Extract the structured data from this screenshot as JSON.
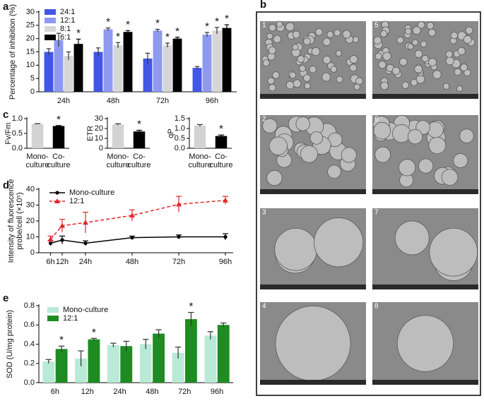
{
  "chart_data": [
    {
      "type": "bar",
      "panel_label": "a",
      "y_label": "Percentage of inhibition (%)",
      "categories": [
        "24h",
        "48h",
        "72h",
        "96h"
      ],
      "series": [
        {
          "name": "24:1",
          "color": "#4257e6",
          "values": [
            15,
            15,
            12.5,
            9
          ],
          "errors": [
            1.2,
            1.5,
            2,
            0.5
          ]
        },
        {
          "name": "12:1",
          "color": "#8e99f2",
          "values": [
            19.5,
            23.5,
            23,
            21.5
          ],
          "errors": [
            2.5,
            0.5,
            0.5,
            0.8
          ],
          "significance": [
            null,
            "*",
            "*",
            "*"
          ]
        },
        {
          "name": "8:1",
          "color": "#d6d6d6",
          "values": [
            13.5,
            17.5,
            17.5,
            23
          ],
          "errors": [
            1.5,
            1,
            0.8,
            1.2
          ],
          "significance": [
            null,
            "*",
            "*",
            "*"
          ]
        },
        {
          "name": "6:1",
          "color": "#000000",
          "values": [
            18,
            22.5,
            20,
            24
          ],
          "errors": [
            1.8,
            0.5,
            0.5,
            1.2
          ],
          "significance": [
            "*",
            "*",
            "*",
            "*"
          ]
        }
      ],
      "ylim": [
        0,
        30
      ],
      "yticks": [
        0,
        5,
        10,
        15,
        20,
        25,
        30
      ],
      "legend": "top-left"
    },
    {
      "type": "bar",
      "panel_label": "c",
      "y_label": "Fv/Fm",
      "categories": [
        [
          "Mono-",
          "culture"
        ],
        [
          "Co-",
          "culture"
        ]
      ],
      "values": [
        0.82,
        0.75
      ],
      "errors": [
        0.01,
        0.015
      ],
      "colors": [
        "#d3d3d3",
        "#000000"
      ],
      "significance": [
        null,
        "*"
      ],
      "ylim": [
        0,
        1
      ],
      "yticks": [
        {
          "value": 0,
          "label": "0.0"
        },
        0.5,
        {
          "value": 1,
          "label": "1.0"
        }
      ]
    },
    {
      "type": "bar",
      "y_label": "ETR",
      "categories": [
        [
          "Mono-",
          "culture"
        ],
        [
          "Co-",
          "culture"
        ]
      ],
      "values": [
        24,
        17
      ],
      "errors": [
        0.8,
        1.2
      ],
      "colors": [
        "#d3d3d3",
        "#000000"
      ],
      "significance": [
        null,
        "*"
      ],
      "ylim": [
        0,
        30
      ],
      "yticks": [
        0,
        10,
        20,
        30
      ]
    },
    {
      "type": "bar",
      "y_label": "qP",
      "categories": [
        [
          "Mono-",
          "culture"
        ],
        [
          "Co-",
          "culture"
        ]
      ],
      "values": [
        1.15,
        0.62
      ],
      "errors": [
        0.05,
        0.05
      ],
      "colors": [
        "#d3d3d3",
        "#000000"
      ],
      "significance": [
        null,
        "*"
      ],
      "ylim": [
        0,
        1.5
      ],
      "yticks": [
        {
          "value": 0,
          "label": "0.0"
        },
        0.5,
        {
          "value": 1,
          "label": "1.0"
        },
        1.5
      ]
    },
    {
      "type": "line",
      "panel_label": "d",
      "y_label": [
        "Intensity of fluorescence",
        "probe/cell (×10⁵)"
      ],
      "x": [
        6,
        12,
        24,
        48,
        72,
        96
      ],
      "series": [
        {
          "name": "Mono-culture",
          "color": "#000000",
          "marker": "circle",
          "dashed": false,
          "values": [
            6,
            8,
            6,
            9.5,
            10,
            10
          ],
          "errors": [
            1.5,
            2.5,
            1.5,
            1,
            1.2,
            2
          ]
        },
        {
          "name": "12:1",
          "color": "#e3262b",
          "marker": "triangle",
          "dashed": true,
          "values": [
            8.5,
            17,
            19,
            23.5,
            30.5,
            33
          ],
          "errors": [
            2,
            4,
            6.5,
            3.5,
            5,
            2.5
          ]
        }
      ],
      "xlim": [
        0,
        100
      ],
      "xticks": [
        {
          "value": 6,
          "label": "6h"
        },
        {
          "value": 12,
          "label": "12h"
        },
        {
          "value": 24,
          "label": "24h"
        },
        {
          "value": 48,
          "label": "48h"
        },
        {
          "value": 72,
          "label": "72h"
        },
        {
          "value": 96,
          "label": "96h"
        }
      ],
      "ylim": [
        0,
        40
      ],
      "yticks": [
        0,
        10,
        20,
        30,
        40
      ],
      "legend": "top-left"
    },
    {
      "type": "bar",
      "panel_label": "e",
      "y_label": "SOD (U/mg protein)",
      "categories": [
        "6h",
        "12h",
        "24h",
        "48h",
        "72h",
        "96h"
      ],
      "series": [
        {
          "name": "Mono-culture",
          "color": "#b9ead5",
          "values": [
            0.22,
            0.25,
            0.39,
            0.4,
            0.31,
            0.49
          ],
          "errors": [
            0.02,
            0.08,
            0.02,
            0.05,
            0.06,
            0.04
          ]
        },
        {
          "name": "12:1",
          "color": "#1e8c22",
          "values": [
            0.35,
            0.45,
            0.38,
            0.51,
            0.66,
            0.6
          ],
          "errors": [
            0.03,
            0.01,
            0.05,
            0.04,
            0.07,
            0.02
          ],
          "significance": [
            "*",
            "*",
            null,
            null,
            "*",
            null
          ]
        }
      ],
      "ylim": [
        0,
        0.8
      ],
      "yticks": [
        {
          "value": 0,
          "label": "0.0"
        },
        0.2,
        0.4,
        0.6,
        0.8
      ],
      "legend": "top-left"
    }
  ],
  "sem_panel": {
    "panel_label": "b",
    "images": [
      "1",
      "2",
      "3",
      "4",
      "5",
      "6",
      "7",
      "8"
    ]
  }
}
